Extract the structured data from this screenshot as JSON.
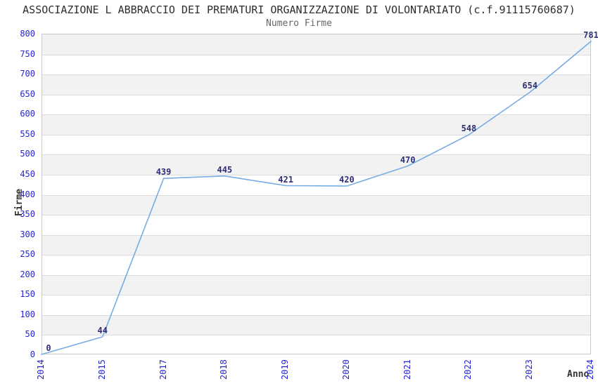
{
  "chart_data": {
    "type": "line",
    "title": "ASSOCIAZIONE L ABBRACCIO DEI PREMATURI ORGANIZZAZIONE DI VOLONTARIATO (c.f.91115760687)",
    "subtitle": "Numero Firme",
    "xlabel": "Anno",
    "ylabel": "Firme",
    "categories": [
      "2014",
      "2015",
      "2017",
      "2018",
      "2019",
      "2020",
      "2021",
      "2022",
      "2023",
      "2024"
    ],
    "values": [
      0,
      44,
      439,
      445,
      421,
      420,
      470,
      548,
      654,
      781
    ],
    "data_labels": [
      "0",
      "44",
      "439",
      "445",
      "421",
      "420",
      "470",
      "548",
      "654",
      "781"
    ],
    "ylim": [
      0,
      800
    ],
    "ytick_step": 50,
    "grid": "alternating-horizontal-bands",
    "legend": "none",
    "colors": {
      "line": "#76ace4",
      "tick_label": "#2525d0",
      "data_label": "#2f2f78",
      "band": "#f2f2f2",
      "gridline": "#dcdcdc",
      "plot_border": "#c9c9c9",
      "title": "#2e2e2e",
      "subtitle": "#666666",
      "axis_label": "#333333",
      "background": "#ffffff"
    }
  }
}
